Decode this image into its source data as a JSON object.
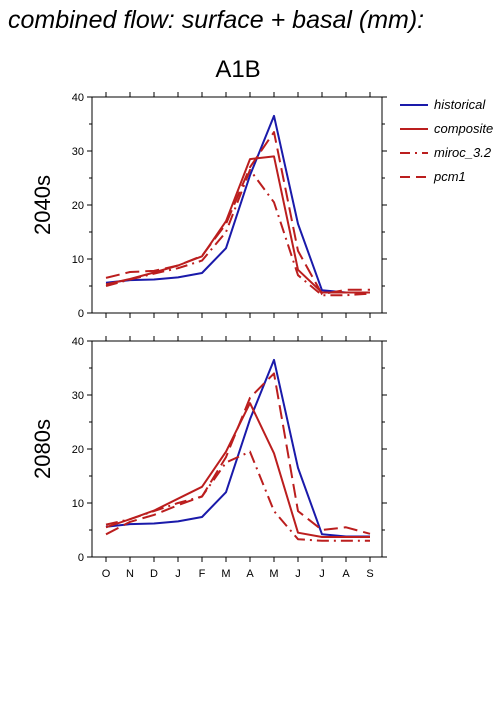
{
  "title": "combined flow: surface + basal (mm):",
  "scenario": "A1B",
  "colors": {
    "historical": "#1a1aaa",
    "models": "#bb1e1e"
  },
  "legend": [
    {
      "name": "historical",
      "color": "#1a1aaa",
      "style": "solid"
    },
    {
      "name": "composite",
      "color": "#bb1e1e",
      "style": "solid"
    },
    {
      "name": "miroc_3.2",
      "color": "#bb1e1e",
      "style": "dashdot"
    },
    {
      "name": "pcm1",
      "color": "#bb1e1e",
      "style": "dashed"
    }
  ],
  "chart_data": [
    {
      "type": "line",
      "label": "2040s",
      "categories": [
        "O",
        "N",
        "D",
        "J",
        "F",
        "M",
        "A",
        "M",
        "J",
        "J",
        "A",
        "S"
      ],
      "ylim": [
        0,
        40
      ],
      "yticks": [
        0,
        10,
        20,
        30,
        40
      ],
      "series": [
        {
          "name": "historical",
          "values": [
            5.6,
            6.1,
            6.2,
            6.6,
            7.4,
            12,
            25.5,
            36.5,
            16.5,
            4.2,
            3.8,
            3.8
          ]
        },
        {
          "name": "composite",
          "values": [
            5.3,
            6.3,
            7.5,
            8.8,
            10.5,
            17,
            28.5,
            29,
            8,
            3.8,
            3.8,
            3.8
          ]
        },
        {
          "name": "miroc_3.2",
          "values": [
            5.0,
            6.2,
            7.3,
            8.3,
            9.7,
            15,
            26.5,
            20.5,
            7,
            3.3,
            3.3,
            3.6
          ]
        },
        {
          "name": "pcm1",
          "values": [
            6.5,
            7.6,
            7.8,
            8.8,
            10.6,
            16.5,
            27,
            33.5,
            11.5,
            3.5,
            4.3,
            4.3
          ]
        }
      ]
    },
    {
      "type": "line",
      "label": "2080s",
      "categories": [
        "O",
        "N",
        "D",
        "J",
        "F",
        "M",
        "A",
        "M",
        "J",
        "J",
        "A",
        "S"
      ],
      "ylim": [
        0,
        40
      ],
      "yticks": [
        0,
        10,
        20,
        30,
        40
      ],
      "series": [
        {
          "name": "historical",
          "values": [
            5.6,
            6.1,
            6.2,
            6.6,
            7.4,
            12,
            25.5,
            36.5,
            16.5,
            4.2,
            3.8,
            3.8
          ]
        },
        {
          "name": "composite",
          "values": [
            5.5,
            7.0,
            8.6,
            10.8,
            13,
            19.5,
            28.5,
            19.2,
            4.5,
            3.7,
            3.7,
            3.7
          ]
        },
        {
          "name": "miroc_3.2",
          "values": [
            6.0,
            7.0,
            8.5,
            10.0,
            11.2,
            17.5,
            19.5,
            8.5,
            3.3,
            3.0,
            3.0,
            3.0
          ]
        },
        {
          "name": "pcm1",
          "values": [
            4.2,
            6.5,
            7.8,
            9.6,
            11.2,
            18.5,
            29.5,
            34,
            8.5,
            5.0,
            5.5,
            4.3
          ]
        }
      ]
    }
  ]
}
